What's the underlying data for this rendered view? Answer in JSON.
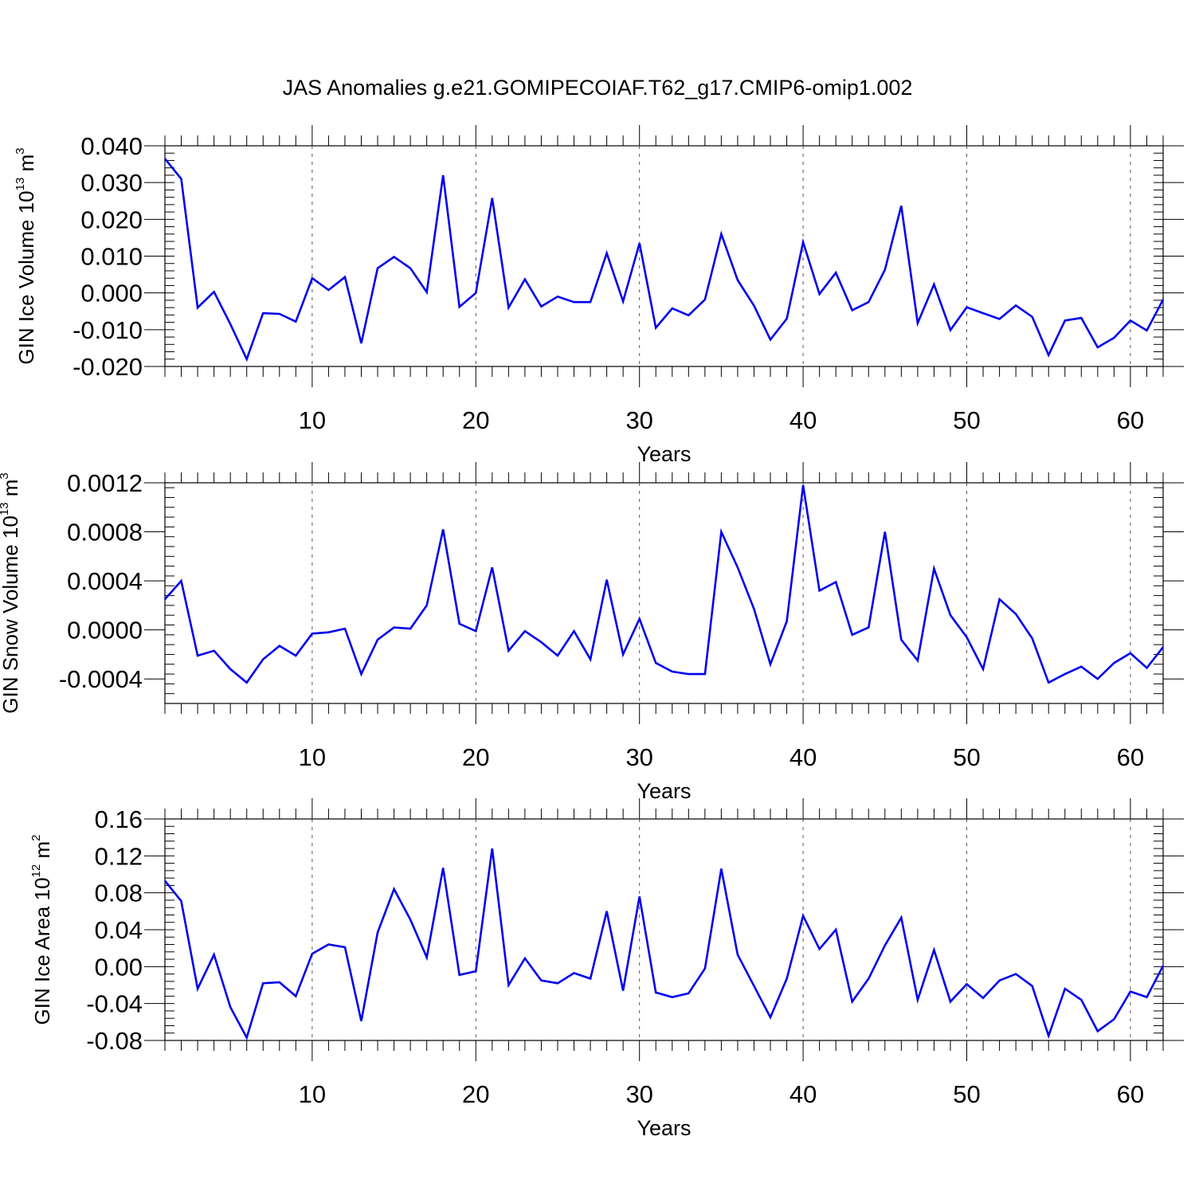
{
  "title": "JAS Anomalies g.e21.GOMIPECOIAF.T62_g17.CMIP6-omip1.002",
  "line_color": "#0000ee",
  "chart_data": [
    {
      "type": "line",
      "id": "ice-volume",
      "ylabel_main": "GIN Ice Volume 10",
      "ylabel_sup1": "13",
      "ylabel_mid": " m",
      "ylabel_sup2": "3",
      "xlabel": "Years",
      "xlim": [
        1,
        62
      ],
      "ylim": [
        -0.02,
        0.04
      ],
      "x_ticks": [
        10,
        20,
        30,
        40,
        50,
        60
      ],
      "x_tick_labels": [
        "10",
        "20",
        "30",
        "40",
        "50",
        "60"
      ],
      "y_ticks": [
        -0.02,
        -0.01,
        0.0,
        0.01,
        0.02,
        0.03,
        0.04
      ],
      "y_tick_labels": [
        "-0.020",
        "-0.010",
        "0.000",
        "0.010",
        "0.020",
        "0.030",
        "0.040"
      ],
      "y_minor_step": 0.002,
      "x_values": [
        1,
        2,
        3,
        4,
        5,
        6,
        7,
        8,
        9,
        10,
        11,
        12,
        13,
        14,
        15,
        16,
        17,
        18,
        19,
        20,
        21,
        22,
        23,
        24,
        25,
        26,
        27,
        28,
        29,
        30,
        31,
        32,
        33,
        34,
        35,
        36,
        37,
        38,
        39,
        40,
        41,
        42,
        43,
        44,
        45,
        46,
        47,
        48,
        49,
        50,
        51,
        52,
        53,
        54,
        55,
        56,
        57,
        58,
        59,
        60,
        61,
        62
      ],
      "values": [
        0.0365,
        0.031,
        -0.004,
        0.0003,
        -0.0085,
        -0.018,
        -0.0055,
        -0.0057,
        -0.0078,
        0.004,
        0.0008,
        0.0043,
        -0.0137,
        0.0067,
        0.0098,
        0.0067,
        0.0002,
        0.032,
        -0.0038,
        0.0,
        0.0258,
        -0.004,
        0.0037,
        -0.0037,
        -0.001,
        -0.0025,
        -0.0025,
        0.0108,
        -0.0023,
        0.0135,
        -0.0095,
        -0.0042,
        -0.0061,
        -0.0018,
        0.016,
        0.0035,
        -0.0035,
        -0.0127,
        -0.007,
        0.0138,
        -0.0003,
        0.0055,
        -0.0047,
        -0.0025,
        0.0063,
        0.0237,
        -0.0082,
        0.0023,
        -0.0101,
        -0.0039,
        -0.0055,
        -0.0071,
        -0.0034,
        -0.0065,
        -0.0169,
        -0.0075,
        -0.0068,
        -0.0148,
        -0.0122,
        -0.0075,
        -0.0102,
        -0.0018
      ]
    },
    {
      "type": "line",
      "id": "snow-volume",
      "ylabel_main": "GIN Snow Volume 10",
      "ylabel_sup1": "13",
      "ylabel_mid": " m",
      "ylabel_sup2": "3",
      "xlabel": "Years",
      "xlim": [
        1,
        62
      ],
      "ylim": [
        -0.0006,
        0.0012
      ],
      "x_ticks": [
        10,
        20,
        30,
        40,
        50,
        60
      ],
      "x_tick_labels": [
        "10",
        "20",
        "30",
        "40",
        "50",
        "60"
      ],
      "y_ticks": [
        -0.0004,
        0.0,
        0.0004,
        0.0008,
        0.0012
      ],
      "y_tick_labels": [
        "-0.0004",
        "0.0000",
        "0.0004",
        "0.0008",
        "0.0012"
      ],
      "y_minor_step": 8e-05,
      "x_values": [
        1,
        2,
        3,
        4,
        5,
        6,
        7,
        8,
        9,
        10,
        11,
        12,
        13,
        14,
        15,
        16,
        17,
        18,
        19,
        20,
        21,
        22,
        23,
        24,
        25,
        26,
        27,
        28,
        29,
        30,
        31,
        32,
        33,
        34,
        35,
        36,
        37,
        38,
        39,
        40,
        41,
        42,
        43,
        44,
        45,
        46,
        47,
        48,
        49,
        50,
        51,
        52,
        53,
        54,
        55,
        56,
        57,
        58,
        59,
        60,
        61,
        62
      ],
      "values": [
        0.00025,
        0.0004,
        -0.00021,
        -0.00017,
        -0.00032,
        -0.00043,
        -0.00024,
        -0.00013,
        -0.00021,
        -3e-05,
        -2e-05,
        1e-05,
        -0.00036,
        -8e-05,
        2e-05,
        1e-05,
        0.0002,
        0.00082,
        5e-05,
        -1e-05,
        0.00051,
        -0.00017,
        -1e-05,
        -0.0001,
        -0.00021,
        -1e-05,
        -0.00024,
        0.00041,
        -0.0002,
        9e-05,
        -0.00027,
        -0.00034,
        -0.00036,
        -0.00036,
        0.0008,
        0.00051,
        0.00017,
        -0.00028,
        7e-05,
        0.00118,
        0.00032,
        0.00039,
        -4e-05,
        2e-05,
        0.0008,
        -8e-05,
        -0.00025,
        0.0005,
        0.00012,
        -6e-05,
        -0.00032,
        0.00025,
        0.00013,
        -7e-05,
        -0.00043,
        -0.00036,
        -0.0003,
        -0.0004,
        -0.00027,
        -0.00019,
        -0.00031,
        -0.00014
      ]
    },
    {
      "type": "line",
      "id": "ice-area",
      "ylabel_main": "GIN Ice Area 10",
      "ylabel_sup1": "12",
      "ylabel_mid": " m",
      "ylabel_sup2": "2",
      "xlabel": "Years",
      "xlim": [
        1,
        62
      ],
      "ylim": [
        -0.08,
        0.16
      ],
      "x_ticks": [
        10,
        20,
        30,
        40,
        50,
        60
      ],
      "x_tick_labels": [
        "10",
        "20",
        "30",
        "40",
        "50",
        "60"
      ],
      "y_ticks": [
        -0.08,
        -0.04,
        0.0,
        0.04,
        0.08,
        0.12,
        0.16
      ],
      "y_tick_labels": [
        "-0.08",
        "-0.04",
        "0.00",
        "0.04",
        "0.08",
        "0.12",
        "0.16"
      ],
      "y_minor_step": 0.008,
      "x_values": [
        1,
        2,
        3,
        4,
        5,
        6,
        7,
        8,
        9,
        10,
        11,
        12,
        13,
        14,
        15,
        16,
        17,
        18,
        19,
        20,
        21,
        22,
        23,
        24,
        25,
        26,
        27,
        28,
        29,
        30,
        31,
        32,
        33,
        34,
        35,
        36,
        37,
        38,
        39,
        40,
        41,
        42,
        43,
        44,
        45,
        46,
        47,
        48,
        49,
        50,
        51,
        52,
        53,
        54,
        55,
        56,
        57,
        58,
        59,
        60,
        61,
        62
      ],
      "values": [
        0.093,
        0.071,
        -0.024,
        0.013,
        -0.044,
        -0.077,
        -0.018,
        -0.017,
        -0.032,
        0.014,
        0.024,
        0.021,
        -0.059,
        0.037,
        0.084,
        0.051,
        0.01,
        0.107,
        -0.009,
        -0.005,
        0.128,
        -0.02,
        0.009,
        -0.015,
        -0.018,
        -0.007,
        -0.013,
        0.06,
        -0.026,
        0.076,
        -0.028,
        -0.033,
        -0.029,
        -0.002,
        0.106,
        0.013,
        -0.021,
        -0.055,
        -0.013,
        0.055,
        0.019,
        0.04,
        -0.038,
        -0.013,
        0.023,
        0.053,
        -0.036,
        0.018,
        -0.038,
        -0.019,
        -0.034,
        -0.015,
        -0.008,
        -0.021,
        -0.075,
        -0.024,
        -0.036,
        -0.07,
        -0.057,
        -0.027,
        -0.033,
        0.001
      ]
    }
  ]
}
